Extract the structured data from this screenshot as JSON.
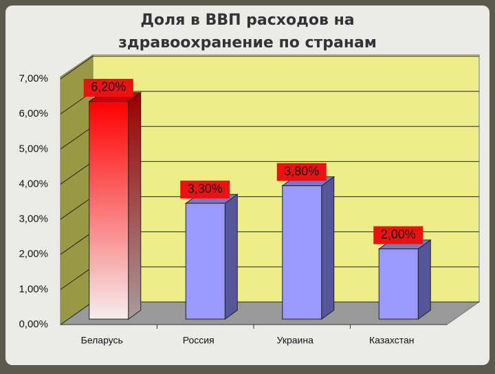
{
  "chart_data": {
    "type": "bar3d",
    "title": [
      "Доля в ВВП расходов на",
      "здравоохранение по странам"
    ],
    "categories": [
      "Беларусь",
      "Россия",
      "Украина",
      "Казахстан"
    ],
    "values": [
      6.2,
      3.3,
      3.8,
      2.0
    ],
    "value_labels": [
      "6,20%",
      "3,30%",
      "3,80%",
      "2,00%"
    ],
    "colors": [
      "#ff0000",
      "#9999ff",
      "#9999ff",
      "#9999ff"
    ],
    "ylim": [
      0,
      7
    ],
    "yticks": [
      {
        "value": 0,
        "label": "0,00%"
      },
      {
        "value": 1,
        "label": "1,00%"
      },
      {
        "value": 2,
        "label": "2,00%"
      },
      {
        "value": 3,
        "label": "3,00%"
      },
      {
        "value": 4,
        "label": "4,00%"
      },
      {
        "value": 5,
        "label": "5,00%"
      },
      {
        "value": 6,
        "label": "6,00%"
      },
      {
        "value": 7,
        "label": "7,00%"
      }
    ],
    "grid": true
  }
}
